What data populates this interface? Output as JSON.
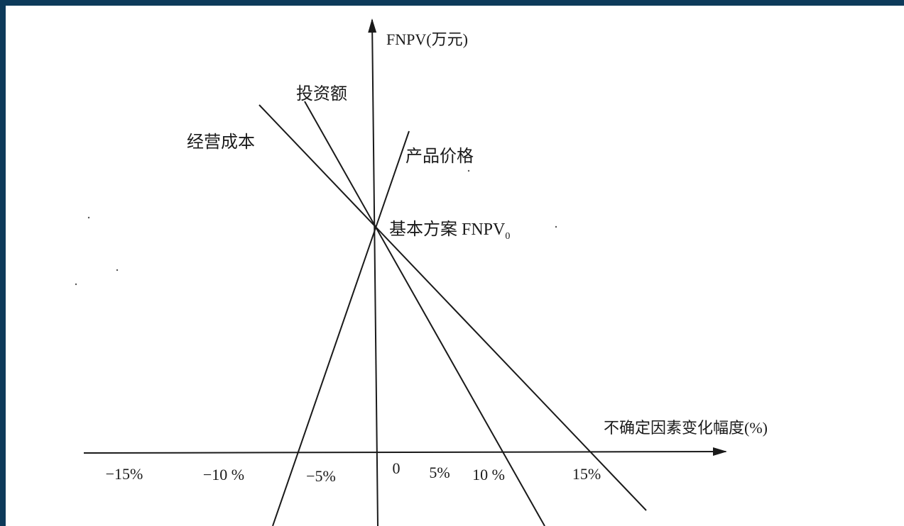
{
  "chart_data": {
    "type": "line",
    "title": "",
    "ylabel": "FNPV(万元)",
    "xlabel": "不确定因素变化幅度(%)",
    "x_tick_labels": [
      {
        "value": -15,
        "label": "−15%"
      },
      {
        "value": -10,
        "label": "−10 %"
      },
      {
        "value": -5,
        "label": "−5%"
      },
      {
        "value": 0,
        "label": "0"
      },
      {
        "value": 5,
        "label": "5%"
      },
      {
        "value": 10,
        "label": "10 %"
      },
      {
        "value": 15,
        "label": "15%"
      }
    ],
    "xlim": [
      -15,
      15
    ],
    "base_point": {
      "x": 0,
      "label": "基本方案 FNPV",
      "subscript": "0"
    },
    "series": [
      {
        "name": "经营成本",
        "x": [
          -7,
          0,
          14
        ],
        "relative_fnpv": [
          1.54,
          1.0,
          0.0
        ]
      },
      {
        "name": "投资额",
        "x": [
          -4,
          0,
          7
        ],
        "relative_fnpv": [
          1.57,
          1.0,
          0.0
        ]
      },
      {
        "name": "产品价格",
        "x": [
          -5,
          0,
          2
        ]
      }
    ],
    "grid": false,
    "legend": "inline labels"
  }
}
